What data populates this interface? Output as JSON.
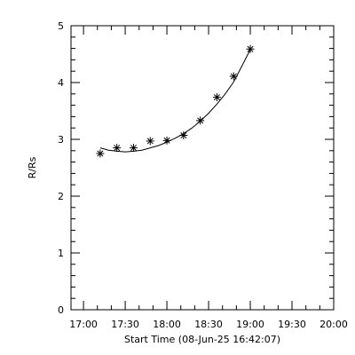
{
  "chart_data": {
    "type": "scatter",
    "ylabel": "R/Rs",
    "xlabel": "Start Time (08-Jun-25 16:42:07)",
    "xlim": [
      "16:51",
      "20:00"
    ],
    "ylim": [
      0,
      5
    ],
    "x_ticks": [
      "17:00",
      "17:30",
      "18:00",
      "18:30",
      "19:00",
      "19:30",
      "20:00"
    ],
    "y_ticks": [
      0,
      1,
      2,
      3,
      4,
      5
    ],
    "grid": false,
    "marker": "asterisk",
    "points": [
      {
        "x": "17:12",
        "y": 2.75
      },
      {
        "x": "17:24",
        "y": 2.85
      },
      {
        "x": "17:36",
        "y": 2.85
      },
      {
        "x": "17:48",
        "y": 2.97
      },
      {
        "x": "18:00",
        "y": 2.98
      },
      {
        "x": "18:12",
        "y": 3.07
      },
      {
        "x": "18:24",
        "y": 3.33
      },
      {
        "x": "18:36",
        "y": 3.74
      },
      {
        "x": "18:48",
        "y": 4.11
      },
      {
        "x": "19:00",
        "y": 4.59
      }
    ],
    "fit_curve": [
      {
        "x": "17:12",
        "y": 2.85
      },
      {
        "x": "17:18",
        "y": 2.81
      },
      {
        "x": "17:24",
        "y": 2.79
      },
      {
        "x": "17:30",
        "y": 2.78
      },
      {
        "x": "17:36",
        "y": 2.79
      },
      {
        "x": "17:42",
        "y": 2.81
      },
      {
        "x": "17:48",
        "y": 2.85
      },
      {
        "x": "17:54",
        "y": 2.89
      },
      {
        "x": "18:00",
        "y": 2.95
      },
      {
        "x": "18:06",
        "y": 3.02
      },
      {
        "x": "18:12",
        "y": 3.1
      },
      {
        "x": "18:18",
        "y": 3.2
      },
      {
        "x": "18:24",
        "y": 3.32
      },
      {
        "x": "18:30",
        "y": 3.46
      },
      {
        "x": "18:36",
        "y": 3.62
      },
      {
        "x": "18:42",
        "y": 3.8
      },
      {
        "x": "18:48",
        "y": 4.01
      },
      {
        "x": "18:54",
        "y": 4.29
      },
      {
        "x": "19:00",
        "y": 4.58
      }
    ]
  }
}
